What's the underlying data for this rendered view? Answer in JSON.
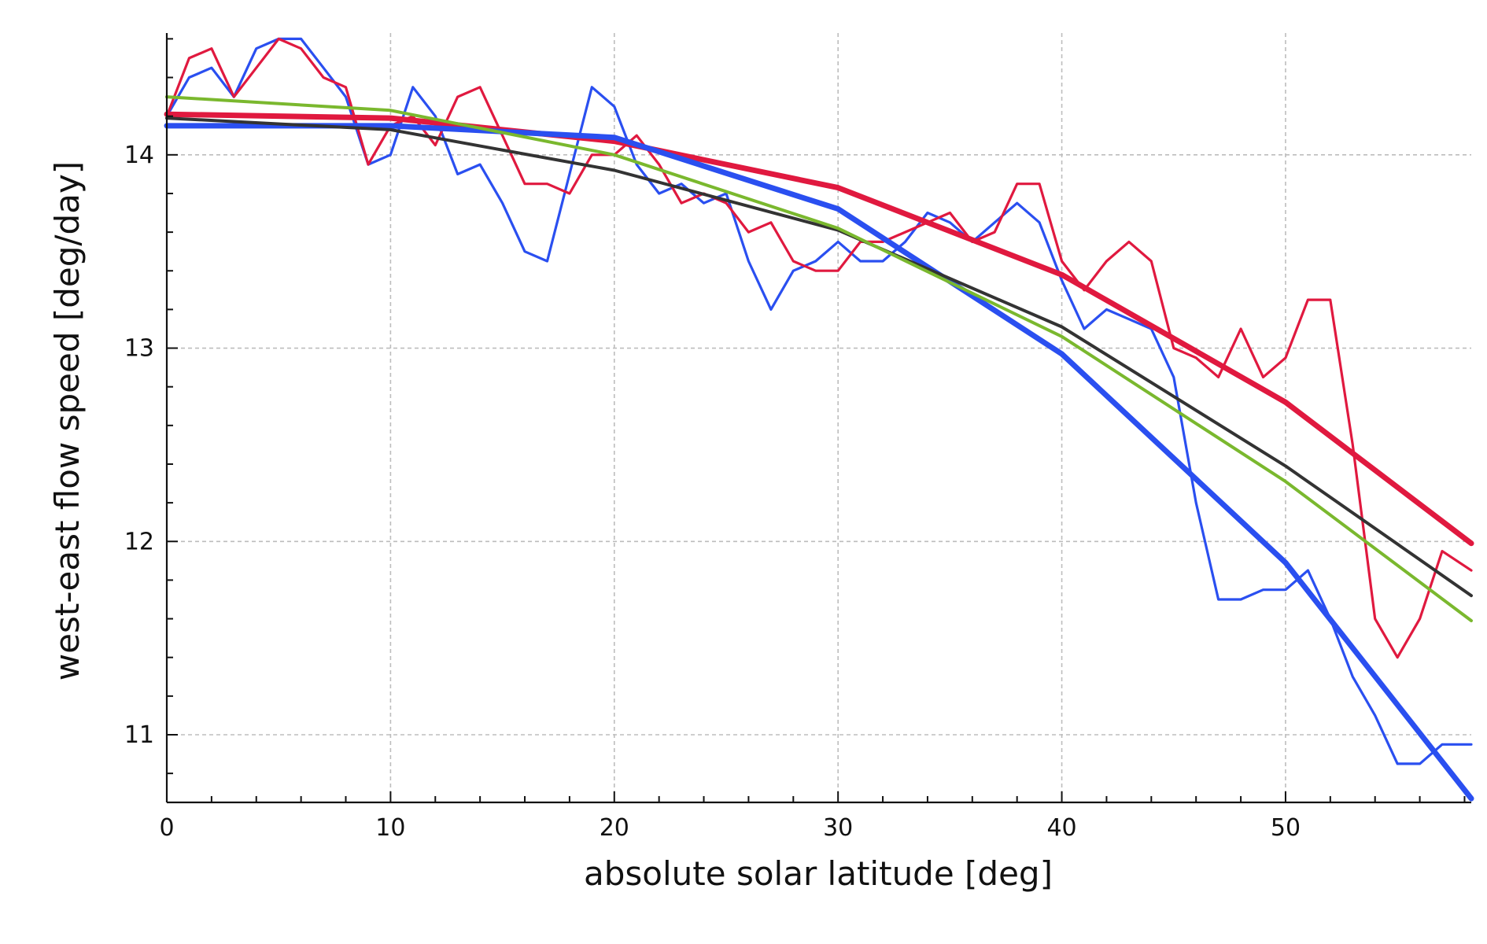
{
  "chart_data": {
    "type": "line",
    "title": "",
    "xlabel": "absolute solar latitude [deg]",
    "ylabel": "west-east flow speed [deg/day]",
    "xlim": [
      0,
      58.3
    ],
    "ylim": [
      10.65,
      14.63
    ],
    "x_ticks": [
      "0",
      "10",
      "20",
      "30",
      "40",
      "50"
    ],
    "y_ticks": [
      "11",
      "12",
      "13",
      "14"
    ],
    "x_tick_values": [
      0,
      10,
      20,
      30,
      40,
      50
    ],
    "y_tick_values": [
      11,
      12,
      13,
      14
    ],
    "grid": true,
    "legend": "none",
    "series": [
      {
        "color": "#2a4ff0",
        "style": "raw",
        "x": [
          0,
          1,
          2,
          3,
          4,
          5,
          6,
          7,
          8,
          9,
          10,
          11,
          12,
          13,
          14,
          15,
          16,
          17,
          18,
          19,
          20,
          21,
          22,
          23,
          24,
          25,
          26,
          27,
          28,
          29,
          30,
          31,
          32,
          33,
          34,
          35,
          36,
          37,
          38,
          39,
          40,
          41,
          42,
          43,
          44,
          45,
          46,
          47,
          48,
          49,
          50,
          51,
          52,
          53,
          54,
          55,
          56,
          57,
          58.3
        ],
        "y": [
          14.2,
          14.4,
          14.45,
          14.3,
          14.55,
          14.6,
          14.6,
          14.45,
          14.3,
          13.95,
          14.0,
          14.35,
          14.2,
          13.9,
          13.95,
          13.75,
          13.5,
          13.45,
          13.9,
          14.35,
          14.25,
          13.95,
          13.8,
          13.85,
          13.75,
          13.8,
          13.45,
          13.2,
          13.4,
          13.45,
          13.55,
          13.45,
          13.45,
          13.55,
          13.7,
          13.65,
          13.55,
          13.65,
          13.75,
          13.65,
          13.35,
          13.1,
          13.2,
          13.15,
          13.1,
          12.85,
          12.2,
          11.7,
          11.7,
          11.75,
          11.75,
          11.85,
          11.6,
          11.3,
          11.1,
          10.85,
          10.85,
          10.95,
          10.95
        ]
      },
      {
        "color": "#e0193f",
        "style": "raw",
        "x": [
          0,
          1,
          2,
          3,
          4,
          5,
          6,
          7,
          8,
          9,
          10,
          11,
          12,
          13,
          14,
          15,
          16,
          17,
          18,
          19,
          20,
          21,
          22,
          23,
          24,
          25,
          26,
          27,
          28,
          29,
          30,
          31,
          32,
          33,
          34,
          35,
          36,
          37,
          38,
          39,
          40,
          41,
          42,
          43,
          44,
          45,
          46,
          47,
          48,
          49,
          50,
          51,
          52,
          53,
          54,
          55,
          56,
          57,
          58.3
        ],
        "y": [
          14.2,
          14.5,
          14.55,
          14.3,
          14.45,
          14.6,
          14.55,
          14.4,
          14.35,
          13.95,
          14.15,
          14.2,
          14.05,
          14.3,
          14.35,
          14.1,
          13.85,
          13.85,
          13.8,
          14.0,
          14.0,
          14.1,
          13.95,
          13.75,
          13.8,
          13.75,
          13.6,
          13.65,
          13.45,
          13.4,
          13.4,
          13.55,
          13.55,
          13.6,
          13.65,
          13.7,
          13.55,
          13.6,
          13.85,
          13.85,
          13.45,
          13.3,
          13.45,
          13.55,
          13.45,
          13.0,
          12.95,
          12.85,
          13.1,
          12.85,
          12.95,
          13.25,
          13.25,
          12.5,
          11.6,
          11.4,
          11.6,
          11.95,
          11.85
        ]
      },
      {
        "color": "#e0193f",
        "style": "fit",
        "x": [
          0,
          10,
          20,
          30,
          40,
          50,
          58.3
        ],
        "y": [
          14.21,
          14.19,
          14.07,
          13.83,
          13.38,
          12.72,
          11.99
        ]
      },
      {
        "color": "#2a4ff0",
        "style": "fit",
        "x": [
          0,
          10,
          20,
          30,
          40,
          50,
          58.3
        ],
        "y": [
          14.15,
          14.15,
          14.09,
          13.72,
          12.97,
          11.89,
          10.67
        ]
      },
      {
        "color": "#333333",
        "style": "fit",
        "x": [
          0,
          10,
          20,
          30,
          40,
          50,
          58.3
        ],
        "y": [
          14.19,
          14.13,
          13.92,
          13.61,
          13.11,
          12.39,
          11.72
        ]
      },
      {
        "color": "#7ab82e",
        "style": "fit",
        "x": [
          0,
          10,
          20,
          30,
          40,
          50,
          58.3
        ],
        "y": [
          14.3,
          14.23,
          14.0,
          13.62,
          13.06,
          12.31,
          11.59
        ]
      }
    ]
  }
}
